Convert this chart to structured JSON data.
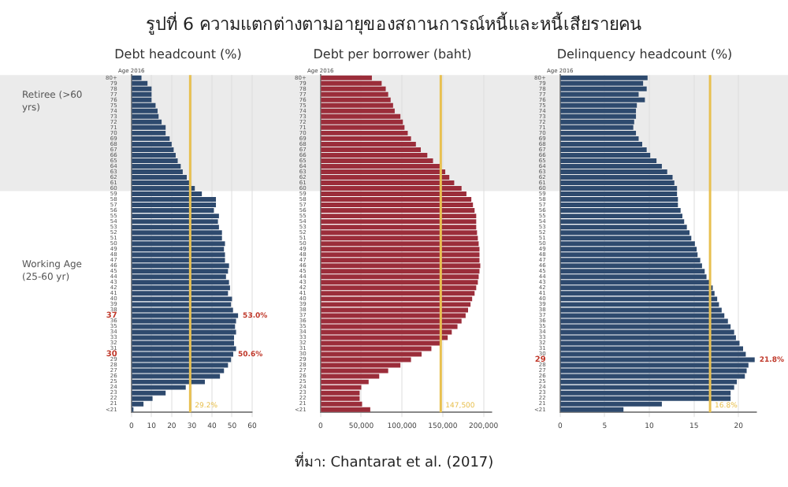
{
  "chart_data": [
    {
      "type": "bar",
      "orientation": "horizontal",
      "subtitle": "รูปที่ 6 ความแตกต่างตามอายุของสถานการณ์หนี้และหนี้เสียรายคน",
      "title": "Debt headcount (%)",
      "ylabel": "Age 2016",
      "categories": [
        "80+",
        "79",
        "78",
        "77",
        "76",
        "75",
        "74",
        "73",
        "72",
        "71",
        "70",
        "69",
        "68",
        "67",
        "66",
        "65",
        "64",
        "63",
        "62",
        "61",
        "60",
        "59",
        "58",
        "57",
        "56",
        "55",
        "54",
        "53",
        "52",
        "51",
        "50",
        "49",
        "48",
        "47",
        "46",
        "45",
        "44",
        "43",
        "42",
        "41",
        "40",
        "39",
        "38",
        "37",
        "36",
        "35",
        "34",
        "33",
        "32",
        "31",
        "30",
        "29",
        "28",
        "27",
        "26",
        "25",
        "24",
        "23",
        "22",
        "21",
        "<21"
      ],
      "values": [
        5,
        8,
        10,
        10,
        10,
        12,
        13,
        13.5,
        15,
        17,
        17,
        19,
        20,
        21,
        22,
        23,
        24.5,
        25.5,
        27.5,
        29.5,
        31.5,
        35,
        42,
        42,
        41,
        43.5,
        43,
        43.5,
        45,
        45,
        46.5,
        46,
        46.5,
        46.5,
        48.5,
        48,
        47,
        48.5,
        49,
        48,
        50,
        49.5,
        50.5,
        53,
        52,
        51.5,
        52,
        51,
        51,
        52,
        50.6,
        49.5,
        48,
        46,
        44,
        36.5,
        27,
        17,
        10.5,
        6,
        1
      ],
      "value_labels": [
        null,
        null,
        null,
        null,
        null,
        null,
        null,
        null,
        null,
        null,
        null,
        null,
        null,
        null,
        null,
        null,
        null,
        null,
        null,
        null,
        null,
        null,
        null,
        null,
        null,
        null,
        null,
        null,
        null,
        null,
        null,
        null,
        null,
        null,
        null,
        null,
        null,
        null,
        null,
        null,
        null,
        null,
        null,
        "53.0%",
        null,
        null,
        null,
        null,
        null,
        null,
        "50.6%",
        null,
        null,
        null,
        null,
        null,
        null,
        null,
        null,
        null,
        null
      ],
      "color": "#2e4a6e",
      "xlim": [
        0,
        60
      ],
      "xticks": [
        0,
        10,
        20,
        30,
        40,
        50,
        60
      ],
      "grid": "x",
      "ref_lines": [
        {
          "axis": "x",
          "value": 29.2,
          "label": "29.2%",
          "color": "#e8c050"
        }
      ],
      "bands": [
        {
          "axis": "y",
          "from": "80+",
          "to": "60",
          "label": "Retiree (>60 yrs)",
          "color": "#ebebeb"
        }
      ],
      "annotations": [
        "Working Age (25-60 yr)"
      ]
    },
    {
      "type": "bar",
      "orientation": "horizontal",
      "title": "Debt per borrower (baht)",
      "ylabel": "Age 2016",
      "categories": [
        "80+",
        "79",
        "78",
        "77",
        "76",
        "75",
        "74",
        "73",
        "72",
        "71",
        "70",
        "69",
        "68",
        "67",
        "66",
        "65",
        "64",
        "63",
        "62",
        "61",
        "60",
        "59",
        "58",
        "57",
        "56",
        "55",
        "54",
        "53",
        "52",
        "51",
        "50",
        "49",
        "48",
        "47",
        "46",
        "45",
        "44",
        "43",
        "42",
        "41",
        "40",
        "39",
        "38",
        "37",
        "36",
        "35",
        "34",
        "33",
        "32",
        "31",
        "30",
        "29",
        "28",
        "27",
        "26",
        "25",
        "24",
        "23",
        "22",
        "21",
        "<21"
      ],
      "values": [
        63000,
        75000,
        80000,
        83000,
        86000,
        89000,
        91000,
        98000,
        101000,
        103000,
        107000,
        111000,
        117000,
        123000,
        131000,
        138000,
        148000,
        153000,
        158000,
        164000,
        173000,
        179000,
        185000,
        187000,
        189000,
        191000,
        191000,
        191000,
        192000,
        193000,
        194000,
        195000,
        195000,
        195000,
        196000,
        195000,
        194000,
        193000,
        191000,
        189000,
        186000,
        184000,
        181000,
        178000,
        173000,
        168000,
        161000,
        156000,
        148000,
        136000,
        124000,
        111000,
        98000,
        83000,
        72000,
        59000,
        50000,
        48000,
        48000,
        51000,
        61000
      ],
      "color": "#9b2d3a",
      "xlim": [
        0,
        210000
      ],
      "xticks": [
        0,
        {
          "value": 50000,
          "label": "50,000"
        },
        {
          "value": 100000,
          "label": "100,000"
        },
        {
          "value": 150000,
          "label": "150,000"
        },
        {
          "value": 200000,
          "label": "200,000"
        }
      ],
      "grid": "x",
      "ref_lines": [
        {
          "axis": "x",
          "value": 147500,
          "label": "147,500",
          "color": "#e8c050"
        }
      ],
      "bands": [
        {
          "axis": "y",
          "from": "80+",
          "to": "60",
          "color": "#ebebeb"
        }
      ],
      "annotations": [
        "ที่มา: Chantarat et al. (2017)"
      ]
    },
    {
      "type": "bar",
      "orientation": "horizontal",
      "title": "Delinquency headcount (%)",
      "ylabel": "Age 2016",
      "categories": [
        "80+",
        "79",
        "78",
        "77",
        "76",
        "75",
        "74",
        "73",
        "72",
        "71",
        "70",
        "69",
        "68",
        "67",
        "66",
        "65",
        "64",
        "63",
        "62",
        "61",
        "60",
        "59",
        "58",
        "57",
        "56",
        "55",
        "54",
        "53",
        "52",
        "51",
        "50",
        "49",
        "48",
        "47",
        "46",
        "45",
        "44",
        "43",
        "42",
        "41",
        "40",
        "39",
        "38",
        "37",
        "36",
        "35",
        "34",
        "33",
        "32",
        "31",
        "30",
        "29",
        "28",
        "27",
        "26",
        "25",
        "24",
        "23",
        "22",
        "21",
        "<21"
      ],
      "values": [
        9.8,
        9.3,
        9.7,
        8.8,
        9.5,
        8.6,
        8.5,
        8.5,
        8.3,
        8.2,
        8.5,
        8.8,
        9.2,
        9.7,
        10.1,
        10.8,
        11.4,
        12,
        12.6,
        12.8,
        13.1,
        13.1,
        13.2,
        13.2,
        13.5,
        13.7,
        13.9,
        14.2,
        14.5,
        14.7,
        15.1,
        15.3,
        15.4,
        15.7,
        15.9,
        16.2,
        16.4,
        16.8,
        17.1,
        17.3,
        17.6,
        17.8,
        18.1,
        18.4,
        18.8,
        19.1,
        19.5,
        19.7,
        20.1,
        20.5,
        20.8,
        21.8,
        21.1,
        20.9,
        20.7,
        19.8,
        19.5,
        19.1,
        19.1,
        11.4,
        7.1
      ],
      "value_labels": [
        null,
        null,
        null,
        null,
        null,
        null,
        null,
        null,
        null,
        null,
        null,
        null,
        null,
        null,
        null,
        null,
        null,
        null,
        null,
        null,
        null,
        null,
        null,
        null,
        null,
        null,
        null,
        null,
        null,
        null,
        null,
        null,
        null,
        null,
        null,
        null,
        null,
        null,
        null,
        null,
        null,
        null,
        null,
        null,
        null,
        null,
        null,
        null,
        null,
        null,
        null,
        "21.8%",
        null,
        null,
        null,
        null,
        null,
        null,
        null,
        null,
        null
      ],
      "color": "#2e4a6e",
      "xlim": [
        0,
        22
      ],
      "xticks": [
        0,
        5,
        10,
        15,
        20
      ],
      "grid": "x",
      "ref_lines": [
        {
          "axis": "x",
          "value": 16.8,
          "label": "16.8%",
          "color": "#e8c050"
        }
      ],
      "bands": [
        {
          "axis": "y",
          "from": "80+",
          "to": "60",
          "color": "#ebebeb"
        }
      ]
    }
  ]
}
